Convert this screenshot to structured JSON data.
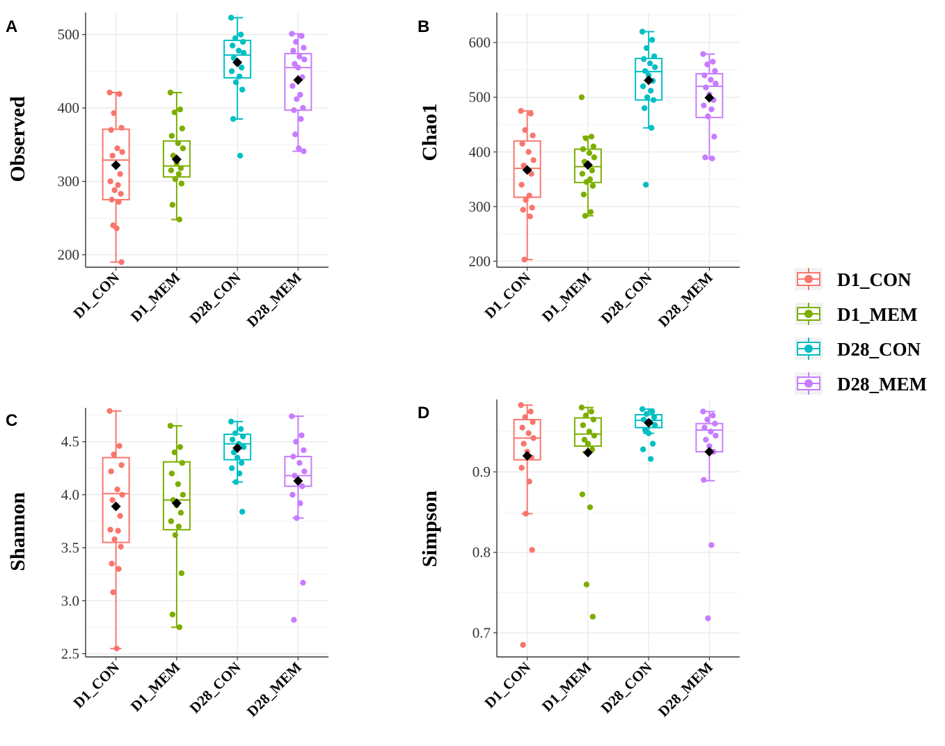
{
  "chart_data": [
    {
      "panel": "A",
      "type": "box",
      "ylabel": "Observed",
      "ylim": [
        183,
        530
      ],
      "yticks": [
        200,
        300,
        400,
        500
      ],
      "ytick_labels": [
        "200",
        "300",
        "400",
        "500"
      ],
      "categories": [
        "D1_CON",
        "D1_MEM",
        "D28_CON",
        "D28_MEM"
      ],
      "series": [
        {
          "name": "D1_CON",
          "q1": 275,
          "median": 329,
          "q3": 371,
          "whisker_low": 190,
          "whisker_high": 421,
          "mean": 322,
          "points": [
            421,
            419,
            393,
            373,
            370,
            345,
            340,
            335,
            322,
            310,
            300,
            295,
            288,
            283,
            275,
            272,
            240,
            236,
            190
          ]
        },
        {
          "name": "D1_MEM",
          "q1": 306,
          "median": 321,
          "q3": 355,
          "whisker_low": 248,
          "whisker_high": 421,
          "mean": 330,
          "points": [
            421,
            398,
            394,
            372,
            362,
            352,
            345,
            335,
            325,
            318,
            315,
            310,
            303,
            297,
            268,
            248
          ]
        },
        {
          "name": "D28_CON",
          "q1": 441,
          "median": 472,
          "q3": 492,
          "whisker_low": 385,
          "whisker_high": 523,
          "mean": 462,
          "points": [
            523,
            500,
            495,
            490,
            485,
            478,
            475,
            468,
            462,
            455,
            450,
            443,
            435,
            425,
            385,
            335
          ]
        },
        {
          "name": "D28_MEM",
          "q1": 397,
          "median": 455,
          "q3": 474,
          "whisker_low": 341,
          "whisker_high": 501,
          "mean": 438,
          "points": [
            501,
            498,
            490,
            482,
            478,
            470,
            466,
            460,
            455,
            442,
            430,
            418,
            412,
            400,
            397,
            385,
            364,
            345,
            341
          ]
        }
      ]
    },
    {
      "panel": "B",
      "type": "box",
      "ylabel": "Chao1",
      "ylim": [
        189,
        655
      ],
      "yticks": [
        200,
        300,
        400,
        500,
        600
      ],
      "ytick_labels": [
        "200",
        "300",
        "400",
        "500",
        "600"
      ],
      "categories": [
        "D1_CON",
        "D1_MEM",
        "D28_CON",
        "D28_MEM"
      ],
      "series": [
        {
          "name": "D1_CON",
          "q1": 317,
          "median": 370,
          "q3": 420,
          "whisker_low": 203,
          "whisker_high": 475,
          "mean": 367,
          "points": [
            475,
            470,
            440,
            430,
            415,
            400,
            385,
            375,
            368,
            360,
            340,
            320,
            312,
            298,
            294,
            282,
            203
          ]
        },
        {
          "name": "D1_MEM",
          "q1": 344,
          "median": 373,
          "q3": 405,
          "whisker_low": 283,
          "whisker_high": 428,
          "mean": 376,
          "points": [
            500,
            428,
            425,
            410,
            405,
            398,
            390,
            382,
            375,
            366,
            360,
            350,
            345,
            338,
            322,
            290,
            283
          ]
        },
        {
          "name": "D28_CON",
          "q1": 495,
          "median": 547,
          "q3": 571,
          "whisker_low": 444,
          "whisker_high": 620,
          "mean": 531,
          "points": [
            620,
            605,
            590,
            575,
            570,
            562,
            555,
            548,
            540,
            530,
            520,
            512,
            500,
            495,
            480,
            444,
            340
          ]
        },
        {
          "name": "D28_MEM",
          "q1": 463,
          "median": 520,
          "q3": 543,
          "whisker_low": 388,
          "whisker_high": 579,
          "mean": 499,
          "points": [
            579,
            565,
            560,
            548,
            540,
            532,
            525,
            518,
            505,
            495,
            485,
            478,
            465,
            428,
            390,
            388
          ]
        }
      ]
    },
    {
      "panel": "C",
      "type": "box",
      "ylabel": "Shannon",
      "ylim": [
        2.47,
        4.82
      ],
      "yticks": [
        2.5,
        3.0,
        3.5,
        4.0,
        4.5
      ],
      "ytick_labels": [
        "2.5",
        "3.0",
        "3.5",
        "4.0",
        "4.5"
      ],
      "categories": [
        "D1_CON",
        "D1_MEM",
        "D28_CON",
        "D28_MEM"
      ],
      "series": [
        {
          "name": "D1_CON",
          "q1": 3.55,
          "median": 4.01,
          "q3": 4.35,
          "whisker_low": 2.55,
          "whisker_high": 4.79,
          "mean": 3.89,
          "points": [
            4.79,
            4.46,
            4.38,
            4.28,
            4.22,
            4.05,
            4.0,
            3.95,
            3.88,
            3.8,
            3.67,
            3.66,
            3.58,
            3.51,
            3.35,
            3.3,
            3.08,
            2.55
          ]
        },
        {
          "name": "D1_MEM",
          "q1": 3.67,
          "median": 3.95,
          "q3": 4.31,
          "whisker_low": 2.75,
          "whisker_high": 4.65,
          "mean": 3.92,
          "points": [
            4.65,
            4.45,
            4.4,
            4.3,
            4.2,
            4.1,
            4.0,
            3.95,
            3.9,
            3.83,
            3.75,
            3.7,
            3.62,
            3.26,
            2.87,
            2.75
          ]
        },
        {
          "name": "D28_CON",
          "q1": 4.33,
          "median": 4.48,
          "q3": 4.57,
          "whisker_low": 4.12,
          "whisker_high": 4.69,
          "mean": 4.44,
          "points": [
            4.69,
            4.62,
            4.58,
            4.55,
            4.52,
            4.48,
            4.45,
            4.4,
            4.35,
            4.3,
            4.25,
            4.2,
            4.12,
            3.84
          ]
        },
        {
          "name": "D28_MEM",
          "q1": 4.08,
          "median": 4.18,
          "q3": 4.36,
          "whisker_low": 3.78,
          "whisker_high": 4.74,
          "mean": 4.13,
          "points": [
            4.74,
            4.56,
            4.5,
            4.42,
            4.36,
            4.3,
            4.22,
            4.18,
            4.12,
            4.08,
            4.0,
            3.92,
            3.78,
            3.17,
            2.82
          ]
        }
      ]
    },
    {
      "panel": "D",
      "type": "box",
      "ylabel": "Simpson",
      "ylim": [
        0.67,
        0.99
      ],
      "yticks": [
        0.7,
        0.8,
        0.9
      ],
      "ytick_labels": [
        "0.7",
        "0.8",
        "0.9"
      ],
      "categories": [
        "D1_CON",
        "D1_MEM",
        "D28_CON",
        "D28_MEM"
      ],
      "series": [
        {
          "name": "D1_CON",
          "q1": 0.915,
          "median": 0.942,
          "q3": 0.965,
          "whisker_low": 0.848,
          "whisker_high": 0.983,
          "mean": 0.92,
          "points": [
            0.983,
            0.975,
            0.968,
            0.962,
            0.955,
            0.948,
            0.942,
            0.935,
            0.925,
            0.918,
            0.905,
            0.888,
            0.848,
            0.803,
            0.685
          ]
        },
        {
          "name": "D1_MEM",
          "q1": 0.932,
          "median": 0.947,
          "q3": 0.967,
          "whisker_low": 0.925,
          "whisker_high": 0.98,
          "mean": 0.924,
          "points": [
            0.98,
            0.975,
            0.97,
            0.965,
            0.958,
            0.95,
            0.945,
            0.94,
            0.935,
            0.928,
            0.872,
            0.856,
            0.76,
            0.72
          ]
        },
        {
          "name": "D28_CON",
          "q1": 0.955,
          "median": 0.964,
          "q3": 0.971,
          "whisker_low": 0.948,
          "whisker_high": 0.978,
          "mean": 0.961,
          "points": [
            0.978,
            0.975,
            0.972,
            0.968,
            0.965,
            0.962,
            0.958,
            0.952,
            0.948,
            0.935,
            0.928,
            0.916
          ]
        },
        {
          "name": "D28_MEM",
          "q1": 0.925,
          "median": 0.952,
          "q3": 0.96,
          "whisker_low": 0.889,
          "whisker_high": 0.975,
          "mean": 0.925,
          "points": [
            0.975,
            0.97,
            0.965,
            0.96,
            0.955,
            0.95,
            0.945,
            0.94,
            0.932,
            0.925,
            0.89,
            0.809,
            0.718
          ]
        }
      ]
    }
  ],
  "legend": [
    {
      "label": "D1_CON",
      "color": "#F8766D"
    },
    {
      "label": "D1_MEM",
      "color": "#7CAE00"
    },
    {
      "label": "D28_CON",
      "color": "#00BFC4"
    },
    {
      "label": "D28_MEM",
      "color": "#C77CFF"
    }
  ],
  "colors": {
    "D1_CON": "#F8766D",
    "D1_MEM": "#7CAE00",
    "D28_CON": "#00BFC4",
    "D28_MEM": "#C77CFF",
    "mean_marker": "#000000",
    "grid": "#EBEBEB"
  }
}
